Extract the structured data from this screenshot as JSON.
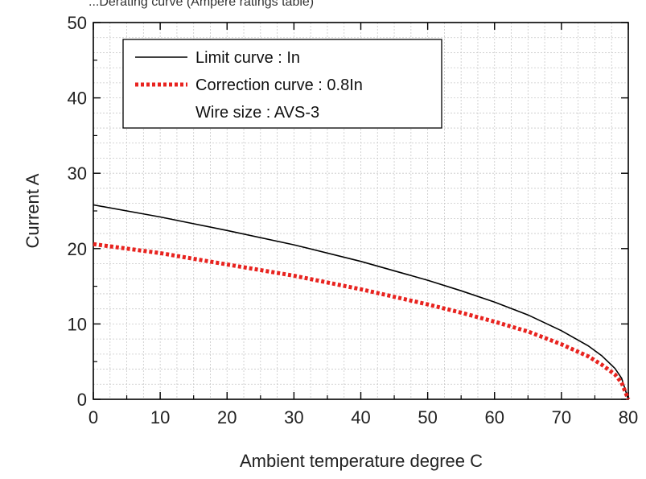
{
  "chart_data": {
    "type": "line",
    "top_text": "...Derating curve (Ampere ratings table)",
    "xlabel": "Ambient temperature  degree C",
    "ylabel": "Current  A",
    "xlim": [
      0,
      80
    ],
    "ylim": [
      0,
      50
    ],
    "x_ticks": [
      "0",
      "10",
      "20",
      "30",
      "40",
      "50",
      "60",
      "70",
      "80"
    ],
    "y_ticks": [
      "0",
      "10",
      "20",
      "30",
      "40",
      "50"
    ],
    "grid": true,
    "legend_position": "top-left",
    "legend_note": "Wire size : AVS-3",
    "series": [
      {
        "name": "Limit curve : In",
        "color": "#000000",
        "style": "solid",
        "x": [
          0,
          10,
          20,
          30,
          40,
          50,
          55,
          60,
          65,
          70,
          74,
          76,
          78,
          79,
          80
        ],
        "values": [
          25.8,
          24.2,
          22.4,
          20.5,
          18.3,
          15.8,
          14.4,
          12.9,
          11.2,
          9.1,
          7.1,
          5.8,
          4.1,
          2.8,
          0
        ]
      },
      {
        "name": "Correction curve : 0.8In",
        "color": "#e8231f",
        "style": "dotted",
        "x": [
          0,
          10,
          20,
          30,
          40,
          50,
          55,
          60,
          65,
          70,
          74,
          76,
          78,
          79,
          80
        ],
        "values": [
          20.6,
          19.4,
          17.9,
          16.4,
          14.6,
          12.6,
          11.5,
          10.3,
          9.0,
          7.3,
          5.7,
          4.6,
          3.3,
          2.2,
          0
        ]
      }
    ]
  }
}
